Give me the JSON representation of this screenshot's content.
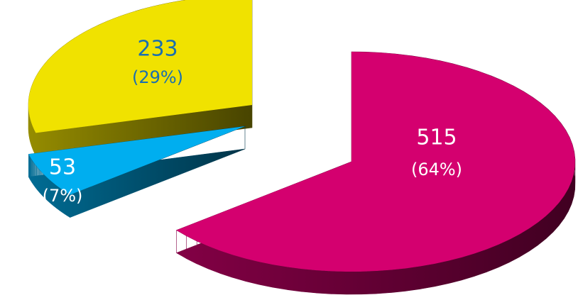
{
  "chart_data": {
    "type": "pie3d",
    "values": [
      515,
      53,
      233
    ],
    "percents": [
      64,
      7,
      29
    ],
    "percent_labels": [
      "(64%)",
      "(7%)",
      "(29%)"
    ],
    "colors": [
      "#d4006f",
      "#00aeef",
      "#f0e200"
    ],
    "label_colors": [
      "#ffffff",
      "#ffffff",
      "#1a6fb0"
    ]
  }
}
